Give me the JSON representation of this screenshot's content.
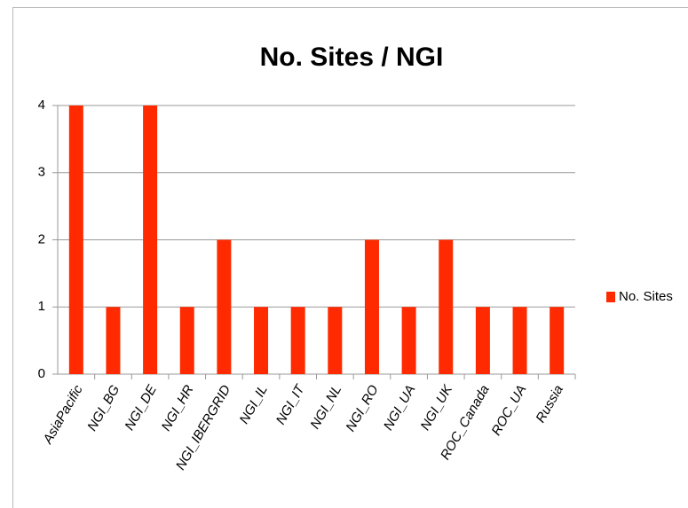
{
  "chart_data": {
    "type": "bar",
    "title": "No. Sites / NGI",
    "categories": [
      "AsiaPacific",
      "NGI_BG",
      "NGI_DE",
      "NGI_HR",
      "NGI_IBERGRID",
      "NGI_IL",
      "NGI_IT",
      "NGI_NL",
      "NGI_RO",
      "NGI_UA",
      "NGI_UK",
      "ROC_Canada",
      "ROC_UA",
      "Russia"
    ],
    "series": [
      {
        "name": "No. Sites",
        "color": "#ff2a00",
        "values": [
          4,
          1,
          4,
          1,
          2,
          1,
          1,
          1,
          2,
          1,
          2,
          1,
          1,
          1
        ]
      }
    ],
    "ylim": [
      0,
      4
    ],
    "yticks": [
      0,
      1,
      2,
      3,
      4
    ],
    "grid": true,
    "legend": "right"
  }
}
